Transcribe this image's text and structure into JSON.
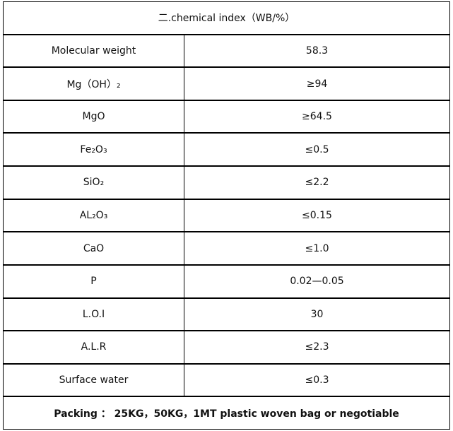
{
  "header": {
    "title": "二.chemical index（WB/%）"
  },
  "table": {
    "rows": [
      [
        "Molecular weight",
        "58.3"
      ],
      [
        "Mg（OH）₂",
        "≥94"
      ],
      [
        "MgO",
        "≥64.5"
      ],
      [
        "Fe₂O₃",
        "≤0.5"
      ],
      [
        "SiO₂",
        "≤2.2"
      ],
      [
        "AL₂O₃",
        "≤0.15"
      ],
      [
        "CaO",
        "≤1.0"
      ],
      [
        "P",
        "0.02—0.05"
      ],
      [
        "L.O.I",
        "30"
      ],
      [
        "A.L.R",
        "≤2.3"
      ],
      [
        "Surface water",
        "≤0.3"
      ]
    ]
  },
  "footer": {
    "text": "Packing ： 25KG，50KG，1MT plastic woven bag or negotiable"
  }
}
